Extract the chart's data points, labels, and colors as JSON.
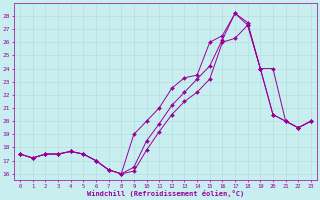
{
  "xlabel": "Windchill (Refroidissement éolien,°C)",
  "background_color": "#c8eef0",
  "line_color": "#990099",
  "grid_color": "#b8dfe0",
  "x_values": [
    0,
    1,
    2,
    3,
    4,
    5,
    6,
    7,
    8,
    9,
    10,
    11,
    12,
    13,
    14,
    15,
    16,
    17,
    18,
    19,
    20,
    21,
    22,
    23
  ],
  "line1": [
    17.5,
    17.2,
    17.5,
    17.5,
    17.7,
    17.5,
    17.0,
    16.3,
    16.0,
    16.2,
    17.8,
    19.2,
    20.5,
    21.5,
    22.2,
    23.2,
    26.0,
    26.3,
    27.3,
    24.0,
    20.5,
    20.0,
    19.5,
    20.0
  ],
  "line2": [
    17.5,
    17.2,
    17.5,
    17.5,
    17.7,
    17.5,
    17.0,
    16.3,
    16.0,
    16.5,
    18.5,
    19.8,
    21.2,
    22.2,
    23.2,
    24.2,
    26.2,
    28.2,
    27.5,
    24.0,
    24.0,
    20.0,
    19.5,
    20.0
  ],
  "line3": [
    17.5,
    17.2,
    17.5,
    17.5,
    17.7,
    17.5,
    17.0,
    16.3,
    16.0,
    19.0,
    20.0,
    21.0,
    22.5,
    23.3,
    23.5,
    26.0,
    26.5,
    28.2,
    27.3,
    24.0,
    20.5,
    20.0,
    19.5,
    20.0
  ],
  "ylim": [
    15.5,
    29.0
  ],
  "xlim": [
    -0.5,
    23.5
  ],
  "yticks": [
    16,
    17,
    18,
    19,
    20,
    21,
    22,
    23,
    24,
    25,
    26,
    27,
    28
  ],
  "xticks": [
    0,
    1,
    2,
    3,
    4,
    5,
    6,
    7,
    8,
    9,
    10,
    11,
    12,
    13,
    14,
    15,
    16,
    17,
    18,
    19,
    20,
    21,
    22,
    23
  ]
}
